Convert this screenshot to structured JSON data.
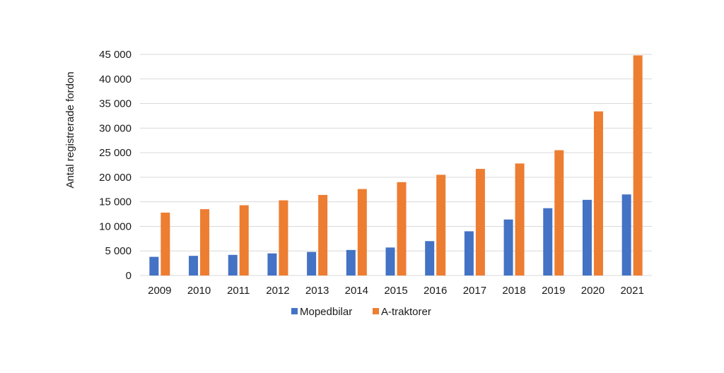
{
  "chart_data": {
    "type": "bar",
    "categories": [
      "2009",
      "2010",
      "2011",
      "2012",
      "2013",
      "2014",
      "2015",
      "2016",
      "2017",
      "2018",
      "2019",
      "2020",
      "2021"
    ],
    "series": [
      {
        "name": "Mopedbilar",
        "color": "#4472c4",
        "values": [
          3800,
          4000,
          4200,
          4500,
          4800,
          5200,
          5700,
          7000,
          9000,
          11400,
          13700,
          15400,
          16500
        ]
      },
      {
        "name": "A-traktorer",
        "color": "#ed7d31",
        "values": [
          12800,
          13500,
          14300,
          15300,
          16400,
          17600,
          19000,
          20500,
          21700,
          22800,
          25500,
          33400,
          44800
        ]
      }
    ],
    "ylabel": "Antal registrerade fordon",
    "xlabel": "",
    "ylim": [
      0,
      45000
    ],
    "yticks": [
      0,
      5000,
      10000,
      15000,
      20000,
      25000,
      30000,
      35000,
      40000,
      45000
    ],
    "ytick_labels": [
      "0",
      "5 000",
      "10 000",
      "15 000",
      "20 000",
      "25 000",
      "30 000",
      "35 000",
      "40 000",
      "45 000"
    ],
    "grid": true,
    "legend_position": "bottom"
  }
}
